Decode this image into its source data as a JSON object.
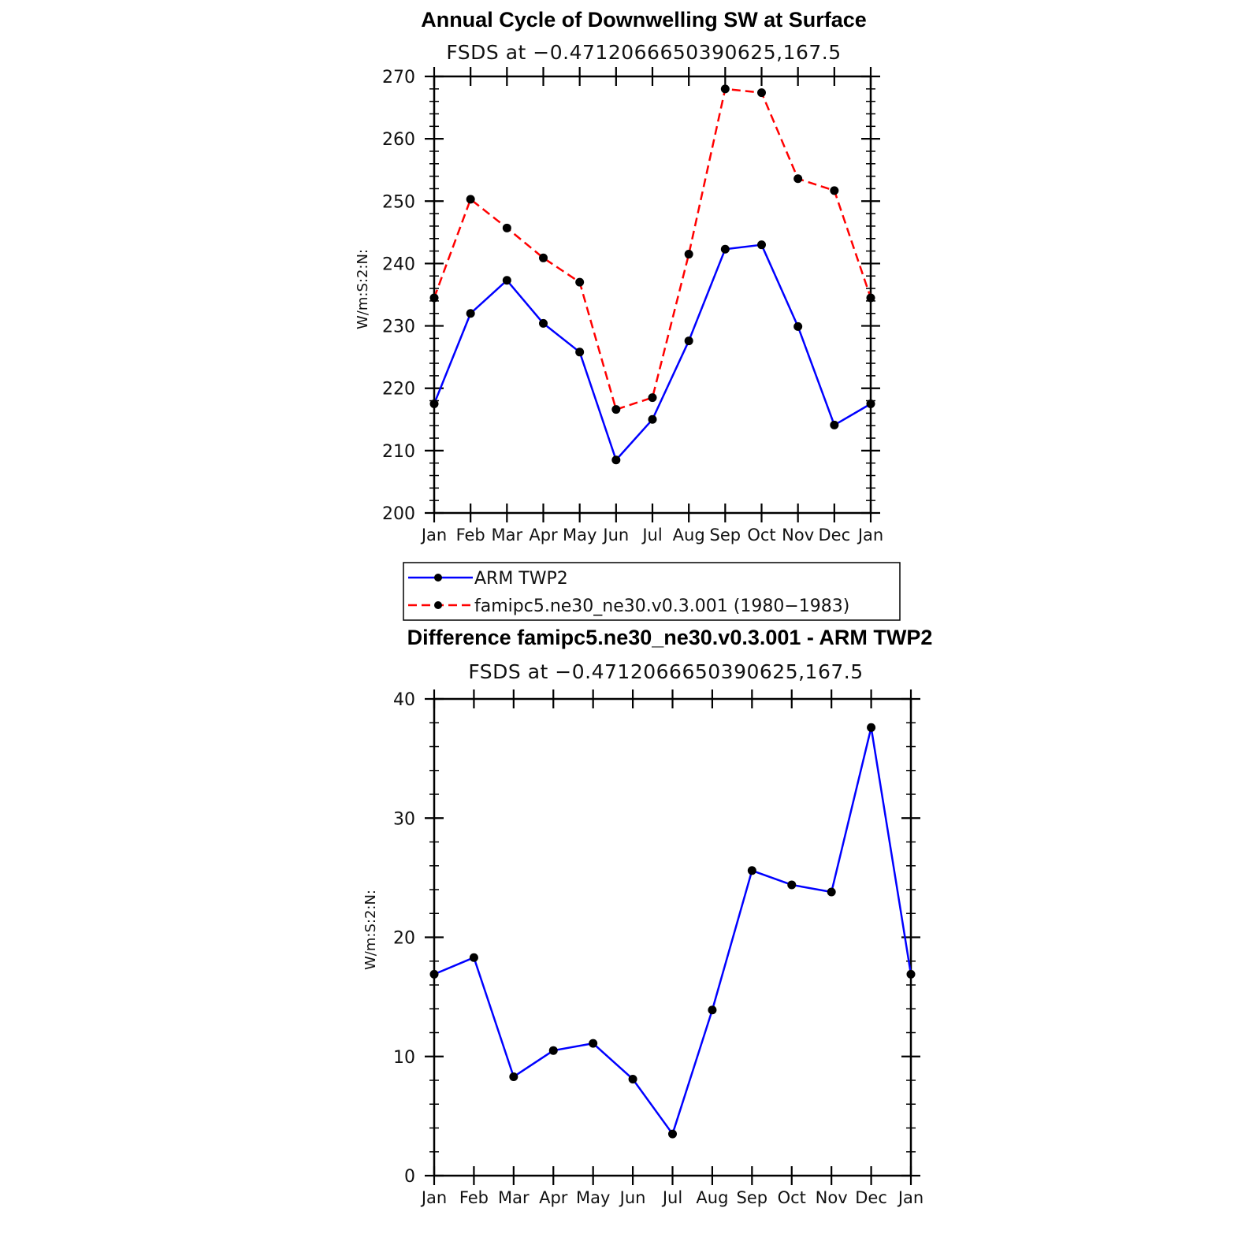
{
  "chart_data": [
    {
      "type": "line",
      "title": "Annual Cycle of Downwelling SW at Surface",
      "subtitle": "FSDS at −0.4712066650390625,167.5",
      "ylabel": "W/m:S:2:N:",
      "xlabel": "",
      "categories": [
        "Jan",
        "Feb",
        "Mar",
        "Apr",
        "May",
        "Jun",
        "Jul",
        "Aug",
        "Sep",
        "Oct",
        "Nov",
        "Dec",
        "Jan"
      ],
      "ylim": [
        200,
        270
      ],
      "yticks": [
        200,
        210,
        220,
        230,
        240,
        250,
        260,
        270
      ],
      "series": [
        {
          "name": "ARM TWP2",
          "color": "#0000ff",
          "dash": "solid",
          "values": [
            217.5,
            232.0,
            237.3,
            230.4,
            225.8,
            208.5,
            215.0,
            227.6,
            242.3,
            243.0,
            229.9,
            214.1,
            217.5
          ]
        },
        {
          "name": "famipc5.ne30_ne30.v0.3.001 (1980−1983)",
          "color": "#ff0000",
          "dash": "dashed",
          "values": [
            234.5,
            250.3,
            245.7,
            240.9,
            237.0,
            216.6,
            218.5,
            241.5,
            268.0,
            267.4,
            253.6,
            251.7,
            234.5
          ]
        }
      ],
      "legend": {
        "position": "bottom",
        "entries": [
          "ARM TWP2",
          "famipc5.ne30_ne30.v0.3.001 (1980−1983)"
        ]
      }
    },
    {
      "type": "line",
      "title": "Difference famipc5.ne30_ne30.v0.3.001 - ARM TWP2",
      "subtitle": "FSDS at −0.4712066650390625,167.5",
      "ylabel": "W/m:S:2:N:",
      "xlabel": "",
      "categories": [
        "Jan",
        "Feb",
        "Mar",
        "Apr",
        "May",
        "Jun",
        "Jul",
        "Aug",
        "Sep",
        "Oct",
        "Nov",
        "Dec",
        "Jan"
      ],
      "ylim": [
        0,
        40
      ],
      "yticks": [
        0,
        10,
        20,
        30,
        40
      ],
      "series": [
        {
          "name": "Difference",
          "color": "#0000ff",
          "dash": "solid",
          "values": [
            16.9,
            18.3,
            8.3,
            10.5,
            11.1,
            8.1,
            3.5,
            13.9,
            25.6,
            24.4,
            23.8,
            37.6,
            16.9
          ]
        }
      ]
    }
  ]
}
